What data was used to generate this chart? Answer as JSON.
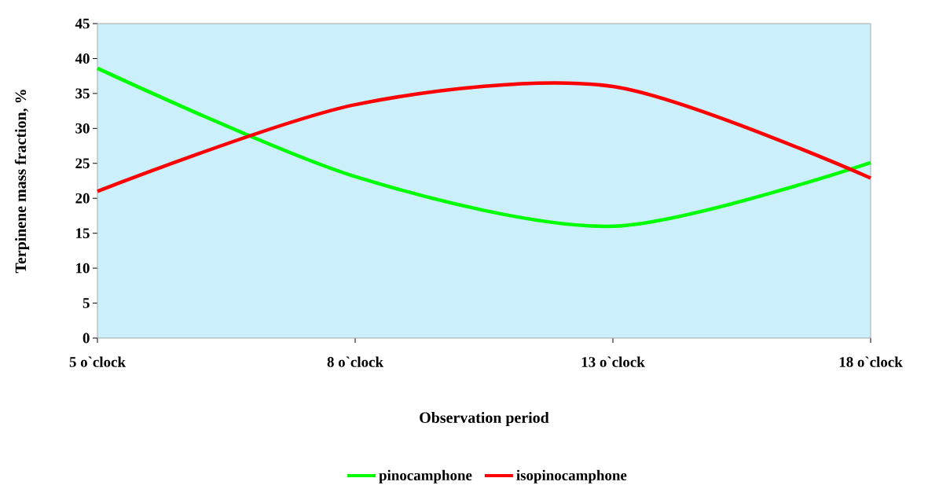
{
  "chart_data": {
    "type": "line",
    "xlabel": "Observation period",
    "ylabel": "Terpinene mass fraction, %",
    "categories": [
      "5 o`clock",
      "8 o`clock",
      "13 o`clock",
      "18 o`clock"
    ],
    "series": [
      {
        "name": "pinocamphone",
        "color": "#00ff00",
        "values": [
          38.6,
          23.1,
          16.0,
          25.1
        ]
      },
      {
        "name": "isopinocamphone",
        "color": "#ff0000",
        "values": [
          21.0,
          33.4,
          36.0,
          22.9
        ]
      }
    ],
    "ylim": [
      0,
      45
    ],
    "yticks": [
      0,
      5,
      10,
      15,
      20,
      25,
      30,
      35,
      40,
      45
    ],
    "grid": false,
    "legend": "bottom",
    "marker": "none",
    "line_style": "solid"
  }
}
